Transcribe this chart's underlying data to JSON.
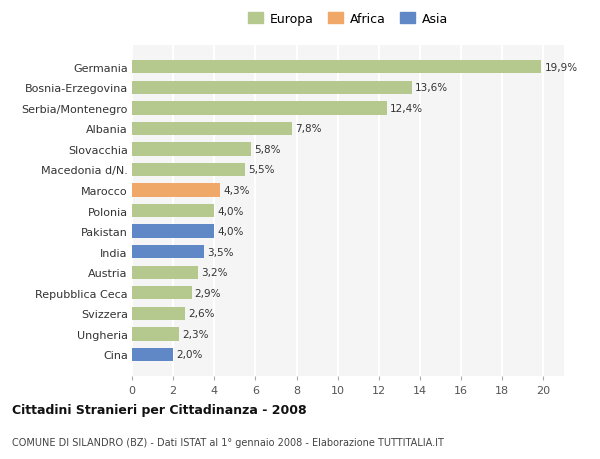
{
  "categories": [
    "Germania",
    "Bosnia-Erzegovina",
    "Serbia/Montenegro",
    "Albania",
    "Slovacchia",
    "Macedonia d/N.",
    "Marocco",
    "Polonia",
    "Pakistan",
    "India",
    "Austria",
    "Repubblica Ceca",
    "Svizzera",
    "Ungheria",
    "Cina"
  ],
  "values": [
    19.9,
    13.6,
    12.4,
    7.8,
    5.8,
    5.5,
    4.3,
    4.0,
    4.0,
    3.5,
    3.2,
    2.9,
    2.6,
    2.3,
    2.0
  ],
  "labels": [
    "19,9%",
    "13,6%",
    "12,4%",
    "7,8%",
    "5,8%",
    "5,5%",
    "4,3%",
    "4,0%",
    "4,0%",
    "3,5%",
    "3,2%",
    "2,9%",
    "2,6%",
    "2,3%",
    "2,0%"
  ],
  "continent": [
    "Europa",
    "Europa",
    "Europa",
    "Europa",
    "Europa",
    "Europa",
    "Africa",
    "Europa",
    "Asia",
    "Asia",
    "Europa",
    "Europa",
    "Europa",
    "Europa",
    "Asia"
  ],
  "color_europa": "#b5c98e",
  "color_africa": "#f0a868",
  "color_asia": "#6088c6",
  "bg_color": "#ffffff",
  "plot_bg_color": "#f5f5f5",
  "title": "Cittadini Stranieri per Cittadinanza - 2008",
  "subtitle": "COMUNE DI SILANDRO (BZ) - Dati ISTAT al 1° gennaio 2008 - Elaborazione TUTTITALIA.IT",
  "xlim": [
    0,
    21
  ],
  "xticks": [
    0,
    2,
    4,
    6,
    8,
    10,
    12,
    14,
    16,
    18,
    20
  ],
  "legend_labels": [
    "Europa",
    "Africa",
    "Asia"
  ],
  "grid_color": "#ffffff",
  "bar_height": 0.65
}
